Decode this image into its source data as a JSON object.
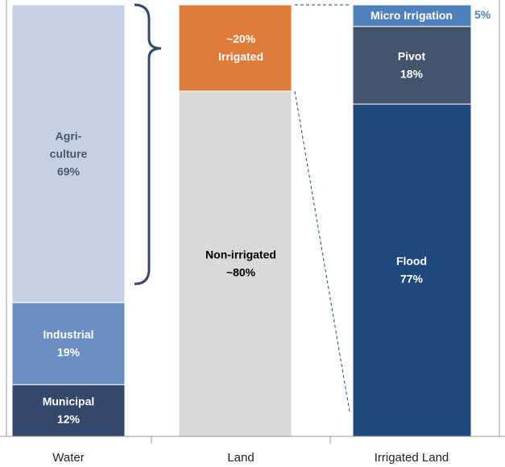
{
  "chart_data": {
    "type": "stacked_bar",
    "categories": [
      "Water",
      "Land",
      "Irrigated Land"
    ],
    "ylim": [
      0,
      100
    ],
    "columns": [
      {
        "segments": [
          {
            "name": [
              "Municipal"
            ],
            "value": 12,
            "value_label": "12%",
            "color": "#34486b",
            "text_color": "#ffffff"
          },
          {
            "name": [
              "Industrial"
            ],
            "value": 19,
            "value_label": "19%",
            "color": "#6a8fc0",
            "text_color": "#ffffff"
          },
          {
            "name": [
              "Agri-",
              "culture"
            ],
            "value": 69,
            "value_label": "69%",
            "color": "#c5d0e2",
            "text_color": "#4a5873"
          }
        ]
      },
      {
        "segments": [
          {
            "name": [
              "Non-irrigated"
            ],
            "value": 80,
            "value_label": "~80%",
            "color": "#d9d9d9",
            "text_color": "#000000"
          },
          {
            "name": [
              "Irrigated"
            ],
            "value": 20,
            "value_label": "~20%",
            "color": "#e07b39",
            "text_color": "#ffffff",
            "value_first": true
          }
        ]
      },
      {
        "segments": [
          {
            "name": [
              "Flood"
            ],
            "value": 77,
            "value_label": "77%",
            "color": "#1f497d",
            "text_color": "#ffffff"
          },
          {
            "name": [
              "Pivot"
            ],
            "value": 18,
            "value_label": "18%",
            "color": "#44546a",
            "text_color": "#ffffff"
          },
          {
            "name": [
              "Micro Irrigation"
            ],
            "value": 5,
            "value_label": "5%",
            "color": "#4f81bd",
            "text_color": "#ffffff",
            "value_outside": true
          }
        ]
      }
    ]
  }
}
